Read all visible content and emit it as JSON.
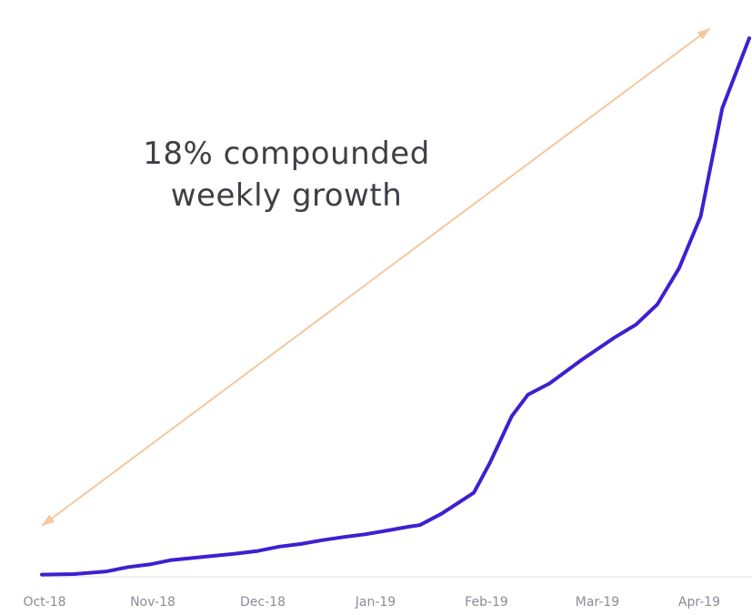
{
  "chart_data": {
    "type": "line",
    "title": "",
    "xlabel": "",
    "ylabel": "",
    "x_ticks": [
      "Oct-18",
      "Nov-18",
      "Dec-18",
      "Jan-19",
      "Feb-19",
      "Mar-19",
      "Apr-19"
    ],
    "series": [
      {
        "values": [
          [
            0.0,
            0.4
          ],
          [
            0.3,
            0.5
          ],
          [
            0.6,
            1.0
          ],
          [
            0.8,
            1.8
          ],
          [
            1.0,
            2.3
          ],
          [
            1.2,
            3.1
          ],
          [
            1.4,
            3.5
          ],
          [
            1.6,
            3.9
          ],
          [
            1.8,
            4.3
          ],
          [
            2.0,
            4.8
          ],
          [
            2.2,
            5.6
          ],
          [
            2.4,
            6.1
          ],
          [
            2.6,
            6.8
          ],
          [
            2.8,
            7.4
          ],
          [
            3.0,
            7.9
          ],
          [
            3.2,
            8.6
          ],
          [
            3.4,
            9.3
          ],
          [
            3.5,
            9.6
          ],
          [
            3.7,
            11.7
          ],
          [
            3.9,
            14.3
          ],
          [
            4.0,
            15.6
          ],
          [
            4.15,
            21.2
          ],
          [
            4.35,
            29.8
          ],
          [
            4.5,
            33.8
          ],
          [
            4.7,
            35.9
          ],
          [
            5.0,
            40.3
          ],
          [
            5.3,
            44.4
          ],
          [
            5.5,
            46.8
          ],
          [
            5.7,
            50.6
          ],
          [
            5.9,
            57.3
          ],
          [
            6.1,
            66.9
          ],
          [
            6.3,
            87.0
          ],
          [
            6.55,
            100.0
          ]
        ],
        "color": "#3f1fd0"
      }
    ],
    "ylim": [
      0,
      100
    ],
    "xlim": [
      0,
      6.55
    ],
    "grid": false,
    "legend": "none",
    "annotation": {
      "lines": [
        "18% compounded",
        "weekly growth"
      ],
      "arrow_color": "#f3c89e"
    }
  }
}
